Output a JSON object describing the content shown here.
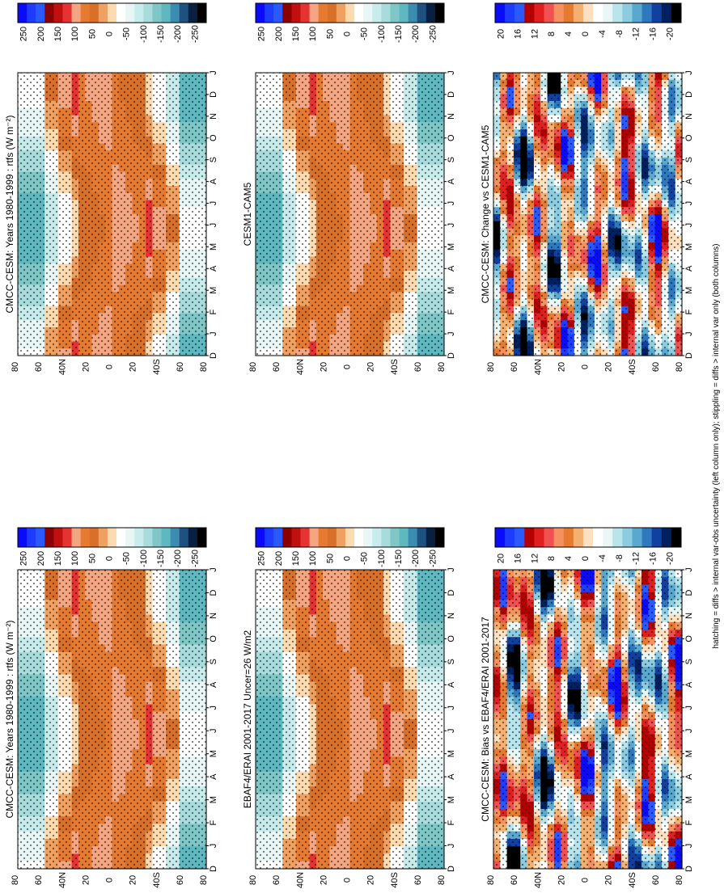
{
  "footnote": "hatching = diffs > internal var-obs uncertainty (left column only); stippling = diffs > internal var only (both columns)",
  "colors": {
    "mean": [
      "#0a0aff",
      "#1e3cff",
      "#2a5aff",
      "#8b0000",
      "#c01010",
      "#e63232",
      "#f4a582",
      "#e67a30",
      "#d9702a",
      "#f0a060",
      "#fddbb0",
      "#ffffff",
      "#e8f6f6",
      "#c8ecec",
      "#a8dcdc",
      "#7fc7c7",
      "#5fb8c0",
      "#3c8cb0",
      "#1e5080",
      "#0a2040",
      "#000000"
    ],
    "diff": [
      "#0a0aff",
      "#1e3cff",
      "#2a5aff",
      "#b40000",
      "#e02020",
      "#f05050",
      "#f59060",
      "#e67a30",
      "#f4b070",
      "#fde0c0",
      "#ffffff",
      "#e8f6f6",
      "#b8e4ec",
      "#8ccce0",
      "#5aa8d0",
      "#2e78c0",
      "#1040a0",
      "#002060",
      "#000000"
    ]
  },
  "chart_data": [
    {
      "id": "panel-left-top",
      "type": "heatmap",
      "title": "CMCC-CESM: Years 1980-1999 : rtfs (W m⁻²)",
      "x_ticks": [
        "D",
        "J",
        "F",
        "M",
        "A",
        "M",
        "J",
        "J",
        "A",
        "S",
        "O",
        "N",
        "D",
        "J"
      ],
      "y_ticks": [
        "80",
        "60",
        "40N",
        "20",
        "0",
        "20",
        "40S",
        "60",
        "80"
      ],
      "colorbar_labels": [
        "250",
        "200",
        "150",
        "100",
        "50",
        "0",
        "-50",
        "-100",
        "-150",
        "-200",
        "-250"
      ],
      "field": "mean"
    },
    {
      "id": "panel-right-top",
      "type": "heatmap",
      "title": "CMCC-CESM: Years 1980-1999 : rtfs (W m⁻²)",
      "x_ticks": [
        "D",
        "J",
        "F",
        "M",
        "A",
        "M",
        "J",
        "J",
        "A",
        "S",
        "O",
        "N",
        "D",
        "J"
      ],
      "y_ticks": [
        "80",
        "60",
        "40N",
        "20",
        "0",
        "20",
        "40S",
        "60",
        "80"
      ],
      "colorbar_labels": [
        "250",
        "200",
        "150",
        "100",
        "50",
        "0",
        "-50",
        "-100",
        "-150",
        "-200",
        "-250"
      ],
      "field": "mean"
    },
    {
      "id": "panel-left-mid",
      "type": "heatmap",
      "title": "EBAF4/ERAI 2001-2017 Uncer=26 W/m2",
      "x_ticks": [
        "D",
        "J",
        "F",
        "M",
        "A",
        "M",
        "J",
        "J",
        "A",
        "S",
        "O",
        "N",
        "D",
        "J"
      ],
      "y_ticks": [
        "80",
        "60",
        "40N",
        "20",
        "0",
        "20",
        "40S",
        "60",
        "80"
      ],
      "colorbar_labels": [
        "250",
        "200",
        "150",
        "100",
        "50",
        "0",
        "-50",
        "-100",
        "-150",
        "-200",
        "-250"
      ],
      "field": "mean"
    },
    {
      "id": "panel-right-mid",
      "type": "heatmap",
      "title": "CESM1-CAM5",
      "x_ticks": [
        "D",
        "J",
        "F",
        "M",
        "A",
        "M",
        "J",
        "J",
        "A",
        "S",
        "O",
        "N",
        "D",
        "J"
      ],
      "y_ticks": [
        "80",
        "60",
        "40N",
        "20",
        "0",
        "20",
        "40S",
        "60",
        "80"
      ],
      "colorbar_labels": [
        "250",
        "200",
        "150",
        "100",
        "50",
        "0",
        "-50",
        "-100",
        "-150",
        "-200",
        "-250"
      ],
      "field": "mean"
    },
    {
      "id": "panel-left-bot",
      "type": "heatmap",
      "title": "CMCC-CESM: Bias vs EBAF4/ERAI 2001-2017",
      "x_ticks": [
        "D",
        "J",
        "F",
        "M",
        "A",
        "M",
        "J",
        "J",
        "A",
        "S",
        "O",
        "N",
        "D",
        "J"
      ],
      "y_ticks": [
        "80",
        "60",
        "40N",
        "20",
        "0",
        "20",
        "40S",
        "60",
        "80"
      ],
      "colorbar_labels": [
        "20",
        "16",
        "12",
        "8",
        "4",
        "0",
        "-4",
        "-8",
        "-12",
        "-16",
        "-20"
      ],
      "field": "diff"
    },
    {
      "id": "panel-right-bot",
      "type": "heatmap",
      "title": "CMCC-CESM: Change vs CESM1-CAM5",
      "x_ticks": [
        "D",
        "J",
        "F",
        "M",
        "A",
        "M",
        "J",
        "J",
        "A",
        "S",
        "O",
        "N",
        "D",
        "J"
      ],
      "y_ticks": [
        "80",
        "60",
        "40N",
        "20",
        "0",
        "20",
        "40S",
        "60",
        "80"
      ],
      "colorbar_labels": [
        "20",
        "16",
        "12",
        "8",
        "4",
        "0",
        "-4",
        "-8",
        "-12",
        "-16",
        "-20"
      ],
      "field": "diff"
    }
  ]
}
